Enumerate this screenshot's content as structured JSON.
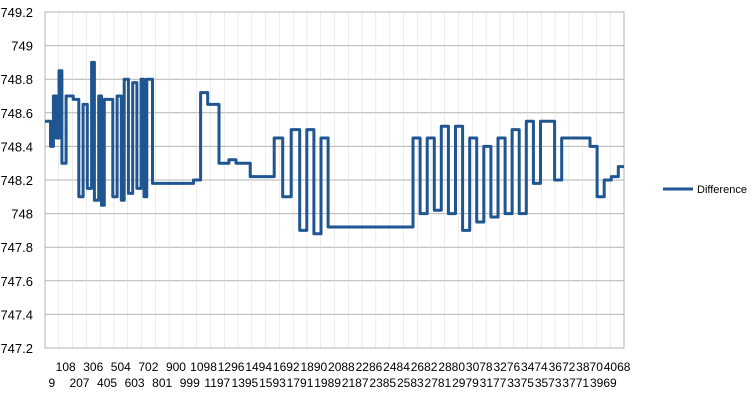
{
  "chart_data": {
    "type": "line",
    "title": "",
    "xlabel": "",
    "ylabel": "",
    "ylim": [
      747.2,
      749.2
    ],
    "y_ticks": [
      "747.2",
      "747.4",
      "747.6",
      "747.8",
      "748",
      "748.2",
      "748.4",
      "748.6",
      "748.8",
      "749",
      "749.2"
    ],
    "x_ticks_top": [
      "108",
      "306",
      "504",
      "702",
      "900",
      "1098",
      "1296",
      "1494",
      "1692",
      "1890",
      "2088",
      "2286",
      "2484",
      "2682",
      "2880",
      "3078",
      "3276",
      "3474",
      "3672",
      "3870",
      "4068"
    ],
    "x_ticks_bottom": [
      "9",
      "207",
      "405",
      "603",
      "801",
      "999",
      "1197",
      "1395",
      "1593",
      "1791",
      "1989",
      "2187",
      "2385",
      "2583",
      "2781",
      "2979",
      "3177",
      "3375",
      "3573",
      "3771",
      "3969"
    ],
    "x_range": [
      1,
      4090
    ],
    "grid": true,
    "legend_position": "right",
    "series": [
      {
        "name": "Difference",
        "color": "#1f5591",
        "x": [
          1,
          40,
          60,
          80,
          100,
          120,
          150,
          180,
          200,
          240,
          270,
          300,
          330,
          350,
          380,
          400,
          420,
          450,
          480,
          510,
          540,
          560,
          590,
          620,
          650,
          680,
          700,
          720,
          760,
          800,
          850,
          900,
          950,
          1000,
          1050,
          1100,
          1150,
          1200,
          1230,
          1260,
          1300,
          1350,
          1400,
          1450,
          1500,
          1560,
          1620,
          1680,
          1740,
          1800,
          1850,
          1900,
          1950,
          2000,
          2050,
          2100,
          2150,
          2200,
          2300,
          2400,
          2500,
          2600,
          2650,
          2700,
          2750,
          2800,
          2850,
          2900,
          2950,
          3000,
          3050,
          3100,
          3150,
          3200,
          3250,
          3300,
          3350,
          3400,
          3450,
          3500,
          3550,
          3600,
          3650,
          3700,
          3750,
          3800,
          3850,
          3900,
          3950,
          4000,
          4050,
          4090
        ],
        "values": [
          748.55,
          748.4,
          748.7,
          748.45,
          748.85,
          748.3,
          748.7,
          748.7,
          748.68,
          748.1,
          748.65,
          748.15,
          748.9,
          748.08,
          748.7,
          748.05,
          748.68,
          748.68,
          748.1,
          748.7,
          748.08,
          748.8,
          748.12,
          748.78,
          748.15,
          748.8,
          748.1,
          748.8,
          748.18,
          748.18,
          748.18,
          748.18,
          748.18,
          748.18,
          748.2,
          748.72,
          748.65,
          748.65,
          748.3,
          748.3,
          748.32,
          748.3,
          748.3,
          748.22,
          748.22,
          748.22,
          748.45,
          748.1,
          748.5,
          747.9,
          748.5,
          747.88,
          748.45,
          747.92,
          747.92,
          747.92,
          747.92,
          747.92,
          747.92,
          747.92,
          747.92,
          748.45,
          748.0,
          748.45,
          748.02,
          748.52,
          748.0,
          748.52,
          747.9,
          748.45,
          747.95,
          748.4,
          747.98,
          748.45,
          748.0,
          748.5,
          748.0,
          748.55,
          748.18,
          748.55,
          748.55,
          748.2,
          748.45,
          748.45,
          748.45,
          748.45,
          748.4,
          748.1,
          748.2,
          748.22,
          748.28,
          748.28
        ]
      }
    ]
  }
}
